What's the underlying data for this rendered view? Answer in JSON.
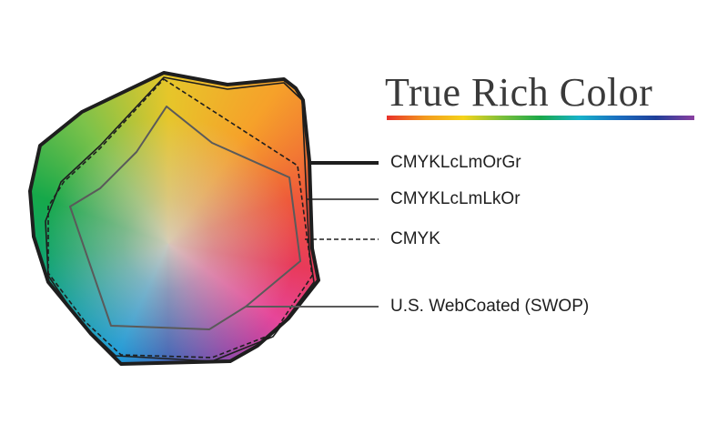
{
  "logo": {
    "text": "True Rich Color"
  },
  "legend": [
    {
      "label": "CMYKLcLmOrGr",
      "line_style": "thick-solid"
    },
    {
      "label": "CMYKLcLmLkOr",
      "line_style": "thin-solid"
    },
    {
      "label": "CMYK",
      "line_style": "dashed"
    },
    {
      "label": "U.S. WebCoated (SWOP)",
      "line_style": "gray-solid"
    }
  ],
  "colors": {
    "outline": "#1e1e1e",
    "swop": "#5a5a5a",
    "logo_text": "#3a3a3a"
  }
}
